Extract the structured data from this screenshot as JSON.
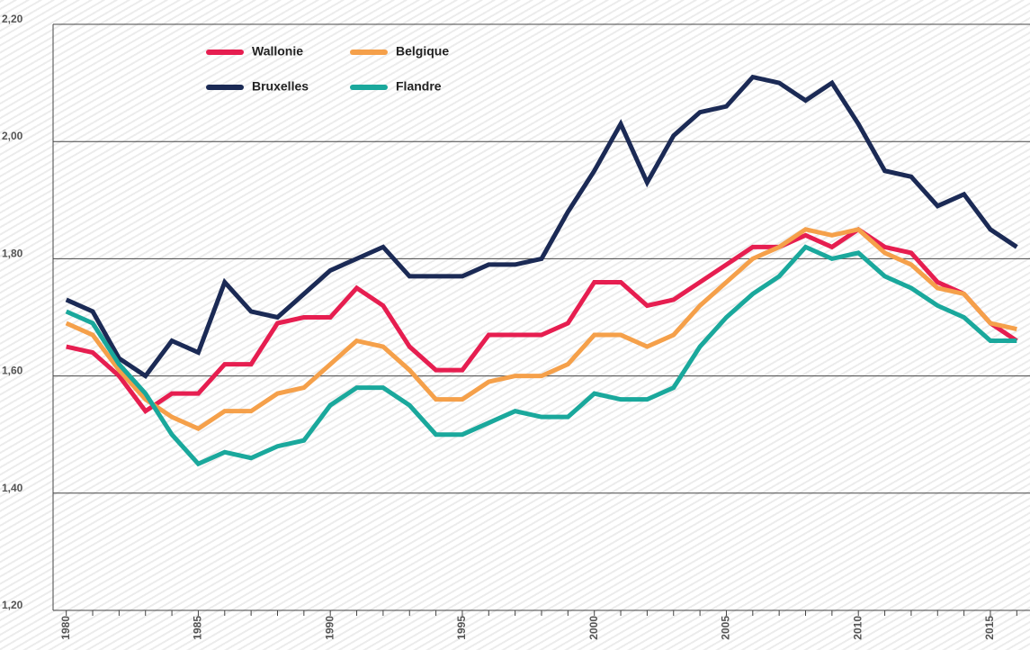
{
  "chart_data": {
    "type": "line",
    "x": [
      1980,
      1981,
      1982,
      1983,
      1984,
      1985,
      1986,
      1987,
      1988,
      1989,
      1990,
      1991,
      1992,
      1993,
      1994,
      1995,
      1996,
      1997,
      1998,
      1999,
      2000,
      2001,
      2002,
      2003,
      2004,
      2005,
      2006,
      2007,
      2008,
      2009,
      2010,
      2011,
      2012,
      2013,
      2014,
      2015,
      2016
    ],
    "xlim": [
      1979.5,
      2016.5
    ],
    "xticks": [
      1980,
      1985,
      1990,
      1995,
      2000,
      2005,
      2010,
      2015
    ],
    "ylim": [
      1.2,
      2.2
    ],
    "yticks": [
      {
        "value": 1.2,
        "label": "1,20"
      },
      {
        "value": 1.4,
        "label": "1,40"
      },
      {
        "value": 1.6,
        "label": "1,60"
      },
      {
        "value": 1.8,
        "label": "1,80"
      },
      {
        "value": 2.0,
        "label": "2,00"
      },
      {
        "value": 2.2,
        "label": "2,20"
      }
    ],
    "grid": true,
    "legend": "top-left",
    "series": [
      {
        "name": "Wallonie",
        "color": "#e61e50",
        "values": [
          1.65,
          1.64,
          1.6,
          1.54,
          1.57,
          1.57,
          1.62,
          1.62,
          1.69,
          1.7,
          1.7,
          1.75,
          1.72,
          1.65,
          1.61,
          1.61,
          1.67,
          1.67,
          1.67,
          1.69,
          1.76,
          1.76,
          1.72,
          1.73,
          1.76,
          1.79,
          1.82,
          1.82,
          1.84,
          1.82,
          1.85,
          1.82,
          1.81,
          1.76,
          1.74,
          1.69,
          1.66
        ]
      },
      {
        "name": "Belgique",
        "color": "#f5a04a",
        "values": [
          1.69,
          1.67,
          1.61,
          1.56,
          1.53,
          1.51,
          1.54,
          1.54,
          1.57,
          1.58,
          1.62,
          1.66,
          1.65,
          1.61,
          1.56,
          1.56,
          1.59,
          1.6,
          1.6,
          1.62,
          1.67,
          1.67,
          1.65,
          1.67,
          1.72,
          1.76,
          1.8,
          1.82,
          1.85,
          1.84,
          1.85,
          1.81,
          1.79,
          1.75,
          1.74,
          1.69,
          1.68
        ]
      },
      {
        "name": "Bruxelles",
        "color": "#1b2a55",
        "values": [
          1.73,
          1.71,
          1.63,
          1.6,
          1.66,
          1.64,
          1.76,
          1.71,
          1.7,
          1.74,
          1.78,
          1.8,
          1.82,
          1.77,
          1.77,
          1.77,
          1.79,
          1.79,
          1.8,
          1.88,
          1.95,
          2.03,
          1.93,
          2.01,
          2.05,
          2.06,
          2.11,
          2.1,
          2.07,
          2.1,
          2.03,
          1.95,
          1.94,
          1.89,
          1.91,
          1.85,
          1.82
        ]
      },
      {
        "name": "Flandre",
        "color": "#1aa89c",
        "values": [
          1.71,
          1.69,
          1.62,
          1.57,
          1.5,
          1.45,
          1.47,
          1.46,
          1.48,
          1.49,
          1.55,
          1.58,
          1.58,
          1.55,
          1.5,
          1.5,
          1.52,
          1.54,
          1.53,
          1.53,
          1.57,
          1.56,
          1.56,
          1.58,
          1.65,
          1.7,
          1.74,
          1.77,
          1.82,
          1.8,
          1.81,
          1.77,
          1.75,
          1.72,
          1.7,
          1.66,
          1.66
        ]
      }
    ]
  }
}
